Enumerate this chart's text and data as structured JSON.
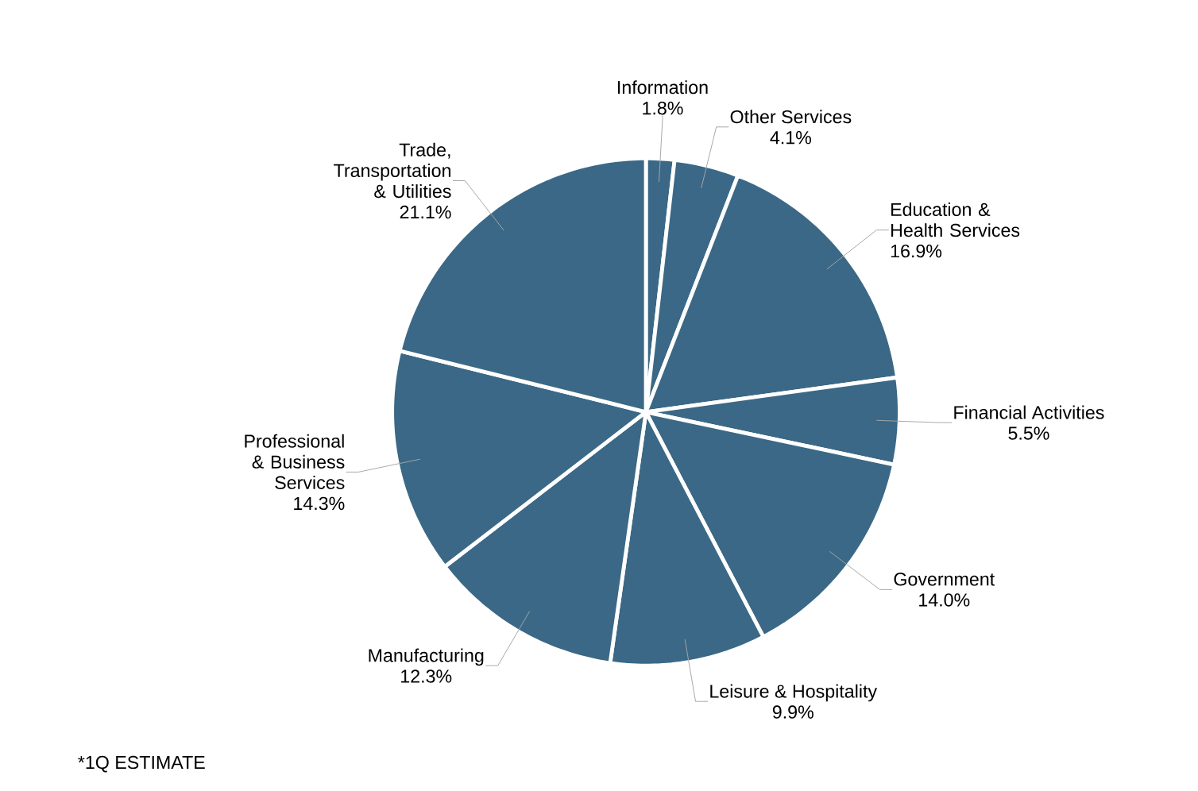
{
  "chart_data": {
    "type": "pie",
    "categories": [
      "Information",
      "Other Services",
      "Education & Health Services",
      "Financial Activities",
      "Government",
      "Leisure & Hospitality",
      "Manufacturing",
      "Professional & Business Services",
      "Trade, Transportation & Utilities"
    ],
    "values": [
      1.8,
      4.1,
      16.9,
      5.5,
      14.0,
      9.9,
      12.3,
      14.3,
      21.1
    ],
    "value_labels": [
      "1.8%",
      "4.1%",
      "16.9%",
      "5.5%",
      "14.0%",
      "9.9%",
      "12.3%",
      "14.3%",
      "21.1%"
    ],
    "colors": [
      "#3b6886",
      "#3b6886",
      "#3b6886",
      "#3b6886",
      "#3b6886",
      "#3b6886",
      "#3b6886",
      "#3b6886",
      "#3b6886"
    ],
    "annotations": [
      "*1Q ESTIMATE"
    ]
  }
}
